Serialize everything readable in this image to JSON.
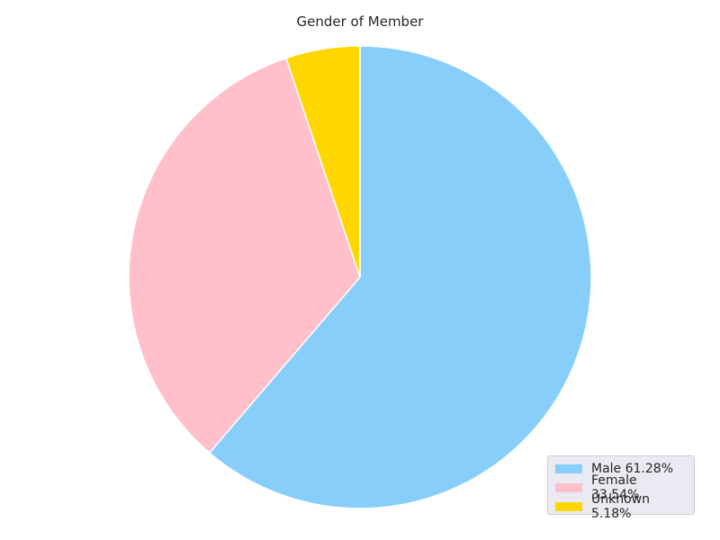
{
  "chart_data": {
    "type": "pie",
    "title": "Gender of Member",
    "categories": [
      "Male",
      "Female",
      "Unknown"
    ],
    "values": [
      61.28,
      33.54,
      5.18
    ],
    "colors": [
      "#87cefa",
      "#ffc0cb",
      "#ffd700"
    ],
    "start_angle_deg": 90,
    "direction": "clockwise",
    "legend": {
      "position": "lower-right",
      "labels": [
        "Male 61.28%",
        "Female 33.54%",
        "Unknown 5.18%"
      ]
    }
  }
}
